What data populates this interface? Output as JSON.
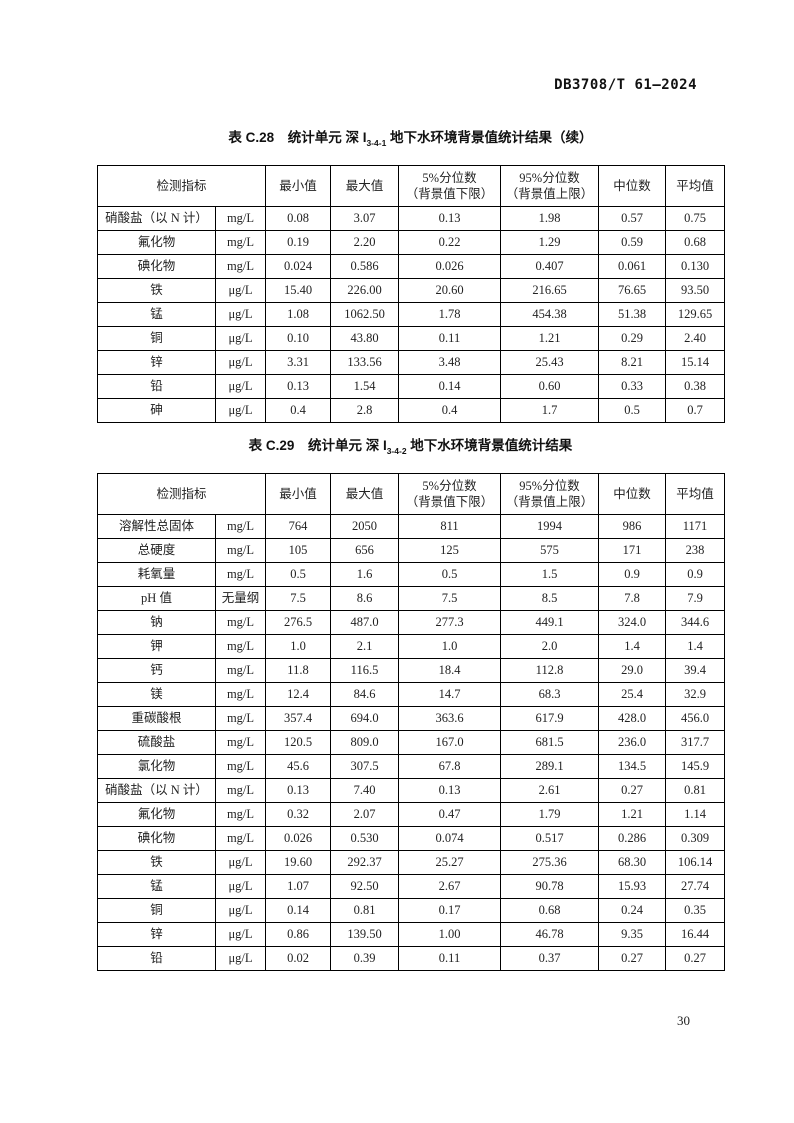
{
  "page": {
    "doc_number": "DB3708/T 61—2024",
    "page_number": "30"
  },
  "tables": [
    {
      "title": {
        "prefix": "表 C.28　统计单元 深 I",
        "subscript": "3-4-1",
        "suffix": " 地下水环境背景值统计结果（续）"
      },
      "header": {
        "indicator": "检测指标",
        "min": "最小值",
        "max": "最大值",
        "p5_line1": "5%分位数",
        "p5_line2": "（背景值下限）",
        "p95_line1": "95%分位数",
        "p95_line2": "（背景值上限）",
        "median": "中位数",
        "mean": "平均值"
      },
      "rows": [
        [
          "硝酸盐（以 N 计）",
          "mg/L",
          "0.08",
          "3.07",
          "0.13",
          "1.98",
          "0.57",
          "0.75"
        ],
        [
          "氟化物",
          "mg/L",
          "0.19",
          "2.20",
          "0.22",
          "1.29",
          "0.59",
          "0.68"
        ],
        [
          "碘化物",
          "mg/L",
          "0.024",
          "0.586",
          "0.026",
          "0.407",
          "0.061",
          "0.130"
        ],
        [
          "铁",
          "μg/L",
          "15.40",
          "226.00",
          "20.60",
          "216.65",
          "76.65",
          "93.50"
        ],
        [
          "锰",
          "μg/L",
          "1.08",
          "1062.50",
          "1.78",
          "454.38",
          "51.38",
          "129.65"
        ],
        [
          "铜",
          "μg/L",
          "0.10",
          "43.80",
          "0.11",
          "1.21",
          "0.29",
          "2.40"
        ],
        [
          "锌",
          "μg/L",
          "3.31",
          "133.56",
          "3.48",
          "25.43",
          "8.21",
          "15.14"
        ],
        [
          "铅",
          "μg/L",
          "0.13",
          "1.54",
          "0.14",
          "0.60",
          "0.33",
          "0.38"
        ],
        [
          "砷",
          "μg/L",
          "0.4",
          "2.8",
          "0.4",
          "1.7",
          "0.5",
          "0.7"
        ]
      ]
    },
    {
      "title": {
        "prefix": "表 C.29　统计单元 深 I",
        "subscript": "3-4-2",
        "suffix": " 地下水环境背景值统计结果"
      },
      "header": {
        "indicator": "检测指标",
        "min": "最小值",
        "max": "最大值",
        "p5_line1": "5%分位数",
        "p5_line2": "（背景值下限）",
        "p95_line1": "95%分位数",
        "p95_line2": "（背景值上限）",
        "median": "中位数",
        "mean": "平均值"
      },
      "rows": [
        [
          "溶解性总固体",
          "mg/L",
          "764",
          "2050",
          "811",
          "1994",
          "986",
          "1171"
        ],
        [
          "总硬度",
          "mg/L",
          "105",
          "656",
          "125",
          "575",
          "171",
          "238"
        ],
        [
          "耗氧量",
          "mg/L",
          "0.5",
          "1.6",
          "0.5",
          "1.5",
          "0.9",
          "0.9"
        ],
        [
          "pH 值",
          "无量纲",
          "7.5",
          "8.6",
          "7.5",
          "8.5",
          "7.8",
          "7.9"
        ],
        [
          "钠",
          "mg/L",
          "276.5",
          "487.0",
          "277.3",
          "449.1",
          "324.0",
          "344.6"
        ],
        [
          "钾",
          "mg/L",
          "1.0",
          "2.1",
          "1.0",
          "2.0",
          "1.4",
          "1.4"
        ],
        [
          "钙",
          "mg/L",
          "11.8",
          "116.5",
          "18.4",
          "112.8",
          "29.0",
          "39.4"
        ],
        [
          "镁",
          "mg/L",
          "12.4",
          "84.6",
          "14.7",
          "68.3",
          "25.4",
          "32.9"
        ],
        [
          "重碳酸根",
          "mg/L",
          "357.4",
          "694.0",
          "363.6",
          "617.9",
          "428.0",
          "456.0"
        ],
        [
          "硫酸盐",
          "mg/L",
          "120.5",
          "809.0",
          "167.0",
          "681.5",
          "236.0",
          "317.7"
        ],
        [
          "氯化物",
          "mg/L",
          "45.6",
          "307.5",
          "67.8",
          "289.1",
          "134.5",
          "145.9"
        ],
        [
          "硝酸盐（以 N 计）",
          "mg/L",
          "0.13",
          "7.40",
          "0.13",
          "2.61",
          "0.27",
          "0.81"
        ],
        [
          "氟化物",
          "mg/L",
          "0.32",
          "2.07",
          "0.47",
          "1.79",
          "1.21",
          "1.14"
        ],
        [
          "碘化物",
          "mg/L",
          "0.026",
          "0.530",
          "0.074",
          "0.517",
          "0.286",
          "0.309"
        ],
        [
          "铁",
          "μg/L",
          "19.60",
          "292.37",
          "25.27",
          "275.36",
          "68.30",
          "106.14"
        ],
        [
          "锰",
          "μg/L",
          "1.07",
          "92.50",
          "2.67",
          "90.78",
          "15.93",
          "27.74"
        ],
        [
          "铜",
          "μg/L",
          "0.14",
          "0.81",
          "0.17",
          "0.68",
          "0.24",
          "0.35"
        ],
        [
          "锌",
          "μg/L",
          "0.86",
          "139.50",
          "1.00",
          "46.78",
          "9.35",
          "16.44"
        ],
        [
          "铅",
          "μg/L",
          "0.02",
          "0.39",
          "0.11",
          "0.37",
          "0.27",
          "0.27"
        ]
      ]
    }
  ]
}
